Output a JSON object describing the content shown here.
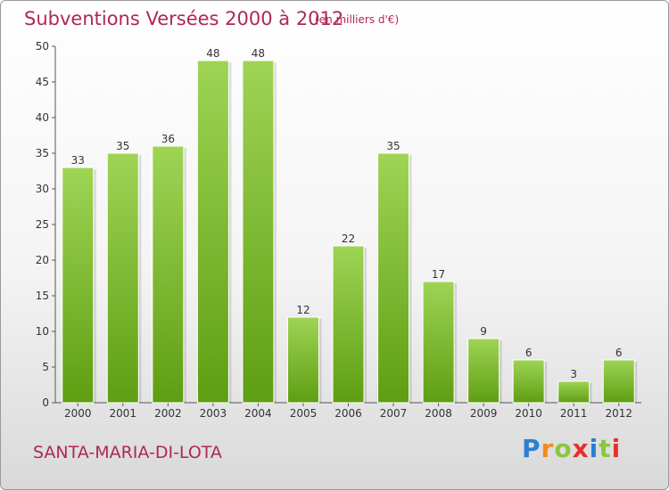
{
  "header": {
    "title": "Subventions Versées 2000 à 2012",
    "unit": "(en milliers d'€)"
  },
  "footer": {
    "commune": "SANTA-MARIA-DI-LOTA",
    "logo": "Proxiti"
  },
  "colors": {
    "title": "#b0284f",
    "bar_top": "#9fd455",
    "bar_bottom": "#5e9e12"
  },
  "chart_data": {
    "type": "bar",
    "title": "Subventions Versées 2000 à 2012",
    "subtitle": "(en milliers d'€)",
    "xlabel": "",
    "ylabel": "",
    "categories": [
      "2000",
      "2001",
      "2002",
      "2003",
      "2004",
      "2005",
      "2006",
      "2007",
      "2008",
      "2009",
      "2010",
      "2011",
      "2012"
    ],
    "values": [
      33,
      35,
      36,
      48,
      48,
      12,
      22,
      35,
      17,
      9,
      6,
      3,
      6
    ],
    "ylim": [
      0,
      50
    ],
    "yticks": [
      0,
      5,
      10,
      15,
      20,
      25,
      30,
      35,
      40,
      45,
      50
    ],
    "grid": false,
    "data_labels": true
  }
}
